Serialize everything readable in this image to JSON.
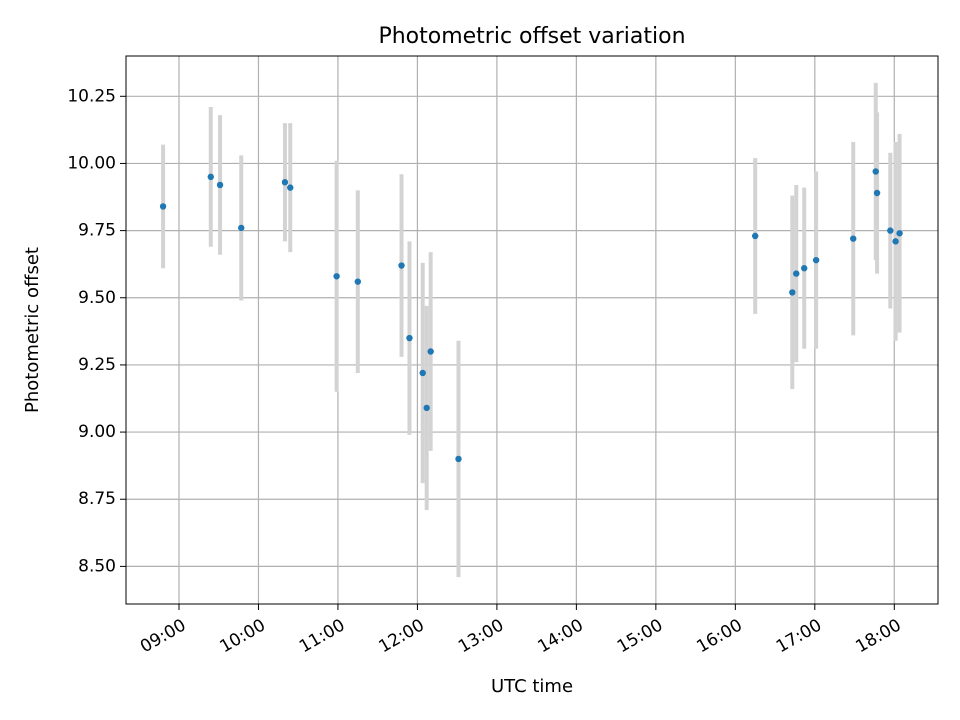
{
  "chart_data": {
    "type": "scatter",
    "title": "Photometric offset variation",
    "xlabel": "UTC time",
    "ylabel": "Photometric offset",
    "x_unit": "UTC time (HH:MM)",
    "xlim": [
      "08:20",
      "18:33"
    ],
    "ylim": [
      8.36,
      10.4
    ],
    "x_ticks": [
      "09:00",
      "10:00",
      "11:00",
      "12:00",
      "13:00",
      "14:00",
      "15:00",
      "16:00",
      "17:00",
      "18:00"
    ],
    "y_ticks": [
      8.5,
      8.75,
      9.0,
      9.25,
      9.5,
      9.75,
      10.0,
      10.25
    ],
    "grid": true,
    "points": [
      {
        "x": "08:48",
        "y": 9.84,
        "err": 0.23
      },
      {
        "x": "09:24",
        "y": 9.95,
        "err": 0.26
      },
      {
        "x": "09:31",
        "y": 9.92,
        "err": 0.26
      },
      {
        "x": "09:47",
        "y": 9.76,
        "err": 0.27
      },
      {
        "x": "10:20",
        "y": 9.93,
        "err": 0.22
      },
      {
        "x": "10:24",
        "y": 9.91,
        "err": 0.24
      },
      {
        "x": "10:59",
        "y": 9.58,
        "err": 0.43
      },
      {
        "x": "11:15",
        "y": 9.56,
        "err": 0.34
      },
      {
        "x": "11:48",
        "y": 9.62,
        "err": 0.34
      },
      {
        "x": "11:54",
        "y": 9.35,
        "err": 0.36
      },
      {
        "x": "12:04",
        "y": 9.22,
        "err": 0.41
      },
      {
        "x": "12:07",
        "y": 9.09,
        "err": 0.38
      },
      {
        "x": "12:10",
        "y": 9.3,
        "err": 0.37
      },
      {
        "x": "12:31",
        "y": 8.9,
        "err": 0.44
      },
      {
        "x": "16:15",
        "y": 9.73,
        "err": 0.29
      },
      {
        "x": "16:43",
        "y": 9.52,
        "err": 0.36
      },
      {
        "x": "16:46",
        "y": 9.59,
        "err": 0.33
      },
      {
        "x": "16:52",
        "y": 9.61,
        "err": 0.3
      },
      {
        "x": "17:01",
        "y": 9.64,
        "err": 0.33
      },
      {
        "x": "17:29",
        "y": 9.72,
        "err": 0.36
      },
      {
        "x": "17:46",
        "y": 9.97,
        "err": 0.33
      },
      {
        "x": "17:47",
        "y": 9.89,
        "err": 0.3
      },
      {
        "x": "17:57",
        "y": 9.75,
        "err": 0.29
      },
      {
        "x": "18:01",
        "y": 9.71,
        "err": 0.37
      },
      {
        "x": "18:04",
        "y": 9.74,
        "err": 0.37
      }
    ]
  },
  "colors": {
    "point": "#1f77b4",
    "errorbar": "#d3d3d3",
    "grid": "#b0b0b0",
    "axis": "#000000"
  }
}
